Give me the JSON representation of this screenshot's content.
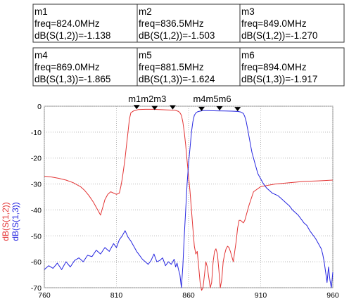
{
  "chart_data": {
    "type": "line",
    "title": "",
    "xlim": [
      760,
      960
    ],
    "ylim": [
      -70,
      0
    ],
    "x_ticks": [
      760,
      810,
      860,
      910,
      960
    ],
    "y_ticks": [
      0,
      -10,
      -20,
      -30,
      -40,
      -50,
      -60,
      -70
    ],
    "grid": true,
    "y_labels": [
      {
        "text": "dB(S(1,2))",
        "color": "#e33434"
      },
      {
        "text": "dB(S(1,3))",
        "color": "#2525e0"
      }
    ],
    "series": [
      {
        "name": "dB(S(1,2))",
        "color": "#e33434",
        "x": [
          760,
          765,
          770,
          775,
          780,
          785,
          788,
          791,
          794,
          796,
          798,
          799,
          800,
          801,
          802,
          804,
          806,
          808,
          810,
          812,
          813,
          814,
          815,
          816,
          817,
          818,
          819,
          820,
          822,
          825,
          830,
          835,
          840,
          845,
          848,
          850,
          851,
          852,
          853,
          854,
          855,
          856,
          857,
          858,
          859,
          860,
          861,
          862,
          863,
          864,
          865,
          866,
          867,
          868,
          869,
          870,
          871,
          872,
          873,
          874,
          875,
          876,
          877,
          878,
          879,
          880,
          881,
          882,
          883,
          884,
          885,
          886,
          887,
          888,
          889,
          890,
          891,
          892,
          893,
          894,
          895,
          896,
          897,
          898,
          899,
          900,
          902,
          905,
          910,
          920,
          930,
          940,
          950,
          960
        ],
        "y": [
          -27,
          -27.3,
          -27.8,
          -28.5,
          -29.5,
          -31,
          -32.5,
          -34.5,
          -37,
          -39,
          -41,
          -42,
          -40,
          -38,
          -36,
          -34,
          -33,
          -33.5,
          -34,
          -33.5,
          -31,
          -28,
          -24,
          -20,
          -15,
          -10,
          -5,
          -2.5,
          -1.8,
          -1.3,
          -1.2,
          -1.2,
          -1.3,
          -1.4,
          -1.5,
          -1.5,
          -1.6,
          -1.8,
          -2,
          -2.5,
          -3.5,
          -6,
          -10,
          -15,
          -21,
          -27,
          -33,
          -40,
          -47,
          -54,
          -57,
          -56,
          -62,
          -68,
          -71,
          -70,
          -65,
          -60,
          -62,
          -66,
          -70,
          -68,
          -60,
          -56,
          -55,
          -57,
          -63,
          -70,
          -67,
          -60,
          -57,
          -55,
          -54,
          -54.5,
          -56,
          -58,
          -60,
          -56,
          -52,
          -47,
          -44,
          -44,
          -44.5,
          -45,
          -44,
          -42,
          -38,
          -33,
          -31,
          -30,
          -29.5,
          -29,
          -28.8,
          -28.5
        ]
      },
      {
        "name": "dB(S(1,3))",
        "color": "#2525e0",
        "x": [
          760,
          763,
          766,
          769,
          772,
          775,
          778,
          781,
          784,
          787,
          790,
          793,
          796,
          799,
          802,
          805,
          808,
          810,
          812,
          814,
          816,
          818,
          820,
          822,
          824,
          826,
          828,
          830,
          832,
          834,
          836,
          838,
          840,
          842,
          844,
          846,
          848,
          850,
          851,
          852,
          853,
          854,
          855,
          856,
          857,
          858,
          859,
          860,
          861,
          862,
          863,
          864,
          865,
          866,
          867,
          868,
          869,
          870,
          872,
          875,
          880,
          885,
          890,
          894,
          896,
          898,
          899,
          900,
          901,
          902,
          903,
          904,
          905,
          906,
          907,
          908,
          910,
          912,
          914,
          916,
          918,
          920,
          922,
          924,
          926,
          928,
          930,
          932,
          934,
          936,
          938,
          940,
          942,
          944,
          946,
          948,
          950,
          952,
          953,
          954,
          955,
          956,
          957,
          958,
          959,
          960
        ],
        "y": [
          -63,
          -61.5,
          -62.5,
          -60.5,
          -63,
          -60,
          -62,
          -59.5,
          -58.5,
          -60,
          -57.5,
          -58,
          -55.5,
          -57,
          -54.5,
          -56,
          -53,
          -54.5,
          -51.5,
          -50,
          -48,
          -50.5,
          -52,
          -54,
          -56,
          -57.5,
          -59,
          -60,
          -61,
          -59.5,
          -57,
          -60,
          -59.5,
          -58.5,
          -61.5,
          -60,
          -61,
          -59,
          -62,
          -60.5,
          -63,
          -65,
          -70,
          -62,
          -50,
          -40,
          -30,
          -22,
          -16,
          -10,
          -6,
          -3.5,
          -2.6,
          -2.2,
          -2,
          -1.9,
          -1.8,
          -1.7,
          -1.7,
          -1.75,
          -1.8,
          -1.85,
          -1.9,
          -2,
          -2.2,
          -2.8,
          -4,
          -6,
          -9,
          -12,
          -15,
          -18,
          -20,
          -22,
          -24,
          -26,
          -28,
          -30,
          -31.5,
          -32.5,
          -33.5,
          -34,
          -34.5,
          -35.5,
          -36.5,
          -37.5,
          -38.5,
          -40,
          -41,
          -42,
          -43.5,
          -45,
          -46,
          -48,
          -49.5,
          -51,
          -53,
          -55,
          -57,
          -60,
          -64,
          -68,
          -62,
          -67,
          -70,
          -64
        ]
      }
    ],
    "markers": [
      {
        "name": "m1",
        "freq": 824.0,
        "value": -1.138,
        "series": 0
      },
      {
        "name": "m2",
        "freq": 836.5,
        "value": -1.503,
        "series": 0
      },
      {
        "name": "m3",
        "freq": 849.0,
        "value": -1.27,
        "series": 0
      },
      {
        "name": "m4",
        "freq": 869.0,
        "value": -1.865,
        "series": 1
      },
      {
        "name": "m5",
        "freq": 881.5,
        "value": -1.624,
        "series": 1
      },
      {
        "name": "m6",
        "freq": 894.0,
        "value": -1.917,
        "series": 1
      }
    ],
    "marker_boxes": [
      {
        "name": "m1",
        "line1": "freq=824.0MHz",
        "line2": "dB(S(1,2))=-1.138"
      },
      {
        "name": "m2",
        "line1": "freq=836.5MHz",
        "line2": "dB(S(1,2))=-1.503"
      },
      {
        "name": "m3",
        "line1": "freq=849.0MHz",
        "line2": "dB(S(1,2))=-1.270"
      },
      {
        "name": "m4",
        "line1": "freq=869.0MHz",
        "line2": "dB(S(1,3))=-1.865"
      },
      {
        "name": "m5",
        "line1": "freq=881.5MHz",
        "line2": "dB(S(1,3))=-1.624"
      },
      {
        "name": "m6",
        "line1": "freq=894.0MHz",
        "line2": "dB(S(1,3))=-1.917"
      }
    ],
    "marker_groups": [
      "m1m2m3",
      "m4m5m6"
    ]
  }
}
